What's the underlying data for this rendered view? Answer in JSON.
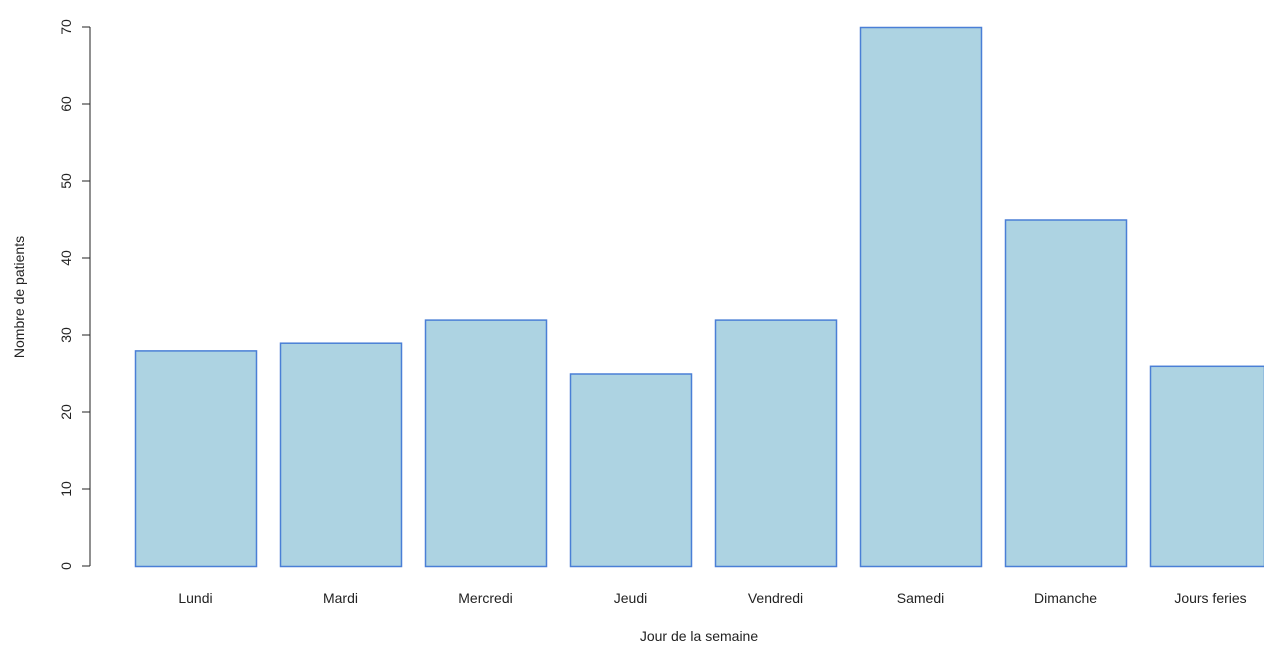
{
  "chart_data": {
    "type": "bar",
    "categories": [
      "Lundi",
      "Mardi",
      "Mercredi",
      "Jeudi",
      "Vendredi",
      "Samedi",
      "Dimanche",
      "Jours feries"
    ],
    "values": [
      28,
      29,
      32,
      25,
      32,
      70,
      45,
      26
    ],
    "xlabel": "Jour de la semaine",
    "ylabel": "Nombre de patients",
    "ylim": [
      0,
      70
    ],
    "yticks": [
      "0",
      "10",
      "20",
      "30",
      "40",
      "50",
      "60",
      "70"
    ],
    "grid": false,
    "legend": "none",
    "colors": {
      "bar_fill": "#add3e2",
      "bar_stroke": "#4a7fd6"
    }
  }
}
